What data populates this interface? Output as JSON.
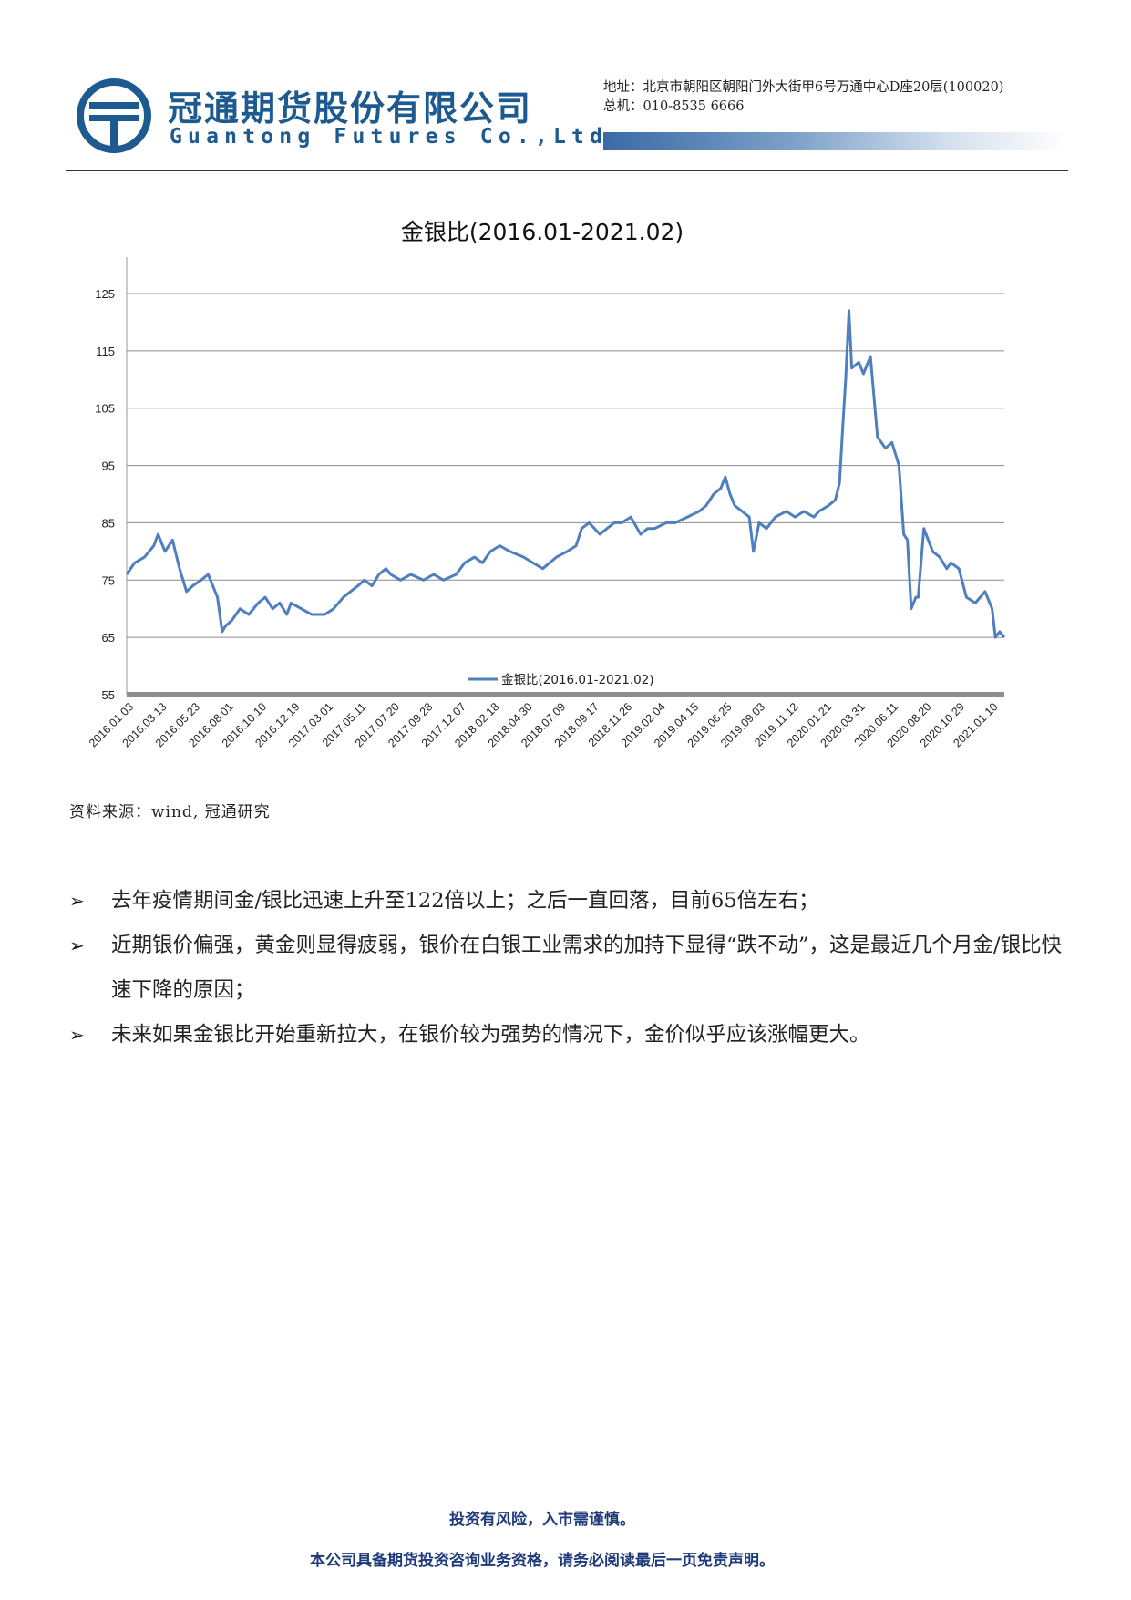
{
  "header": {
    "company_cn": "冠通期货股份有限公司",
    "company_en": "Guantong Futures Co.,Ltd",
    "address": "地址：北京市朝阳区朝阳门外大街甲6号万通中心D座20层(100020)",
    "phone": "总机：010-8535 6666",
    "brand_color": "#1c5a8f"
  },
  "chart_data": {
    "type": "line",
    "title": "金银比(2016.01-2021.02)",
    "ylim": [
      55,
      125
    ],
    "yticks": [
      125,
      115,
      105,
      95,
      85,
      75,
      65,
      55
    ],
    "grid": true,
    "legend_position": "bottom-center",
    "x_tick_labels": [
      "2016.01.03",
      "2016.03.13",
      "2016.05.23",
      "2016.08.01",
      "2016.10.10",
      "2016.12.19",
      "2017.03.01",
      "2017.05.11",
      "2017.07.20",
      "2017.09.28",
      "2017.12.07",
      "2018.02.18",
      "2018.04.30",
      "2018.07.09",
      "2018.09.17",
      "2018.11.26",
      "2019.02.04",
      "2019.04.15",
      "2019.06.25",
      "2019.09.03",
      "2019.11.12",
      "2020.01.21",
      "2020.03.31",
      "2020.06.11",
      "2020.08.20",
      "2020.10.29",
      "2021.01.10"
    ],
    "series": [
      {
        "name": "金银比(2016.01-2021.02)",
        "color": "#4f7fbf",
        "x": [
          "2016-01-03",
          "2016-01-20",
          "2016-02-10",
          "2016-03-01",
          "2016-03-10",
          "2016-03-25",
          "2016-04-10",
          "2016-04-25",
          "2016-05-10",
          "2016-05-23",
          "2016-06-10",
          "2016-06-25",
          "2016-07-05",
          "2016-07-15",
          "2016-07-25",
          "2016-08-01",
          "2016-08-15",
          "2016-09-01",
          "2016-09-20",
          "2016-10-10",
          "2016-10-25",
          "2016-11-10",
          "2016-11-25",
          "2016-12-10",
          "2016-12-19",
          "2017-01-10",
          "2017-02-01",
          "2017-03-01",
          "2017-03-20",
          "2017-04-10",
          "2017-04-25",
          "2017-05-11",
          "2017-05-25",
          "2017-06-10",
          "2017-06-25",
          "2017-07-10",
          "2017-07-20",
          "2017-08-10",
          "2017-09-01",
          "2017-09-28",
          "2017-10-20",
          "2017-11-10",
          "2017-12-07",
          "2017-12-25",
          "2018-01-15",
          "2018-02-01",
          "2018-02-18",
          "2018-03-10",
          "2018-04-01",
          "2018-04-30",
          "2018-05-20",
          "2018-06-10",
          "2018-07-09",
          "2018-08-01",
          "2018-08-20",
          "2018-09-01",
          "2018-09-17",
          "2018-10-10",
          "2018-10-25",
          "2018-11-10",
          "2018-11-26",
          "2018-12-15",
          "2019-01-05",
          "2019-01-20",
          "2019-02-04",
          "2019-03-01",
          "2019-03-20",
          "2019-04-15",
          "2019-05-10",
          "2019-05-25",
          "2019-06-10",
          "2019-06-25",
          "2019-07-05",
          "2019-07-15",
          "2019-07-25",
          "2019-08-10",
          "2019-08-25",
          "2019-09-03",
          "2019-09-15",
          "2019-10-01",
          "2019-10-20",
          "2019-11-12",
          "2019-12-01",
          "2019-12-20",
          "2020-01-10",
          "2020-01-21",
          "2020-02-10",
          "2020-02-25",
          "2020-03-05",
          "2020-03-12",
          "2020-03-18",
          "2020-03-25",
          "2020-03-31",
          "2020-04-15",
          "2020-04-25",
          "2020-05-10",
          "2020-05-25",
          "2020-06-11",
          "2020-06-25",
          "2020-07-10",
          "2020-07-20",
          "2020-07-28",
          "2020-08-05",
          "2020-08-15",
          "2020-08-20",
          "2020-09-01",
          "2020-09-20",
          "2020-10-05",
          "2020-10-20",
          "2020-10-29",
          "2020-11-15",
          "2020-12-01",
          "2020-12-20",
          "2021-01-10",
          "2021-01-25",
          "2021-02-01",
          "2021-02-10",
          "2021-02-20"
        ],
        "values": [
          76,
          78,
          79,
          81,
          83,
          80,
          82,
          77,
          73,
          74,
          75,
          76,
          74,
          72,
          66,
          67,
          68,
          70,
          69,
          71,
          72,
          70,
          71,
          69,
          71,
          70,
          69,
          69,
          70,
          72,
          73,
          74,
          75,
          74,
          76,
          77,
          76,
          75,
          76,
          75,
          76,
          75,
          76,
          78,
          79,
          78,
          80,
          81,
          80,
          79,
          78,
          77,
          79,
          80,
          81,
          84,
          85,
          83,
          84,
          85,
          85,
          86,
          83,
          84,
          84,
          85,
          85,
          86,
          87,
          88,
          90,
          91,
          93,
          90,
          88,
          87,
          86,
          80,
          85,
          84,
          86,
          87,
          86,
          87,
          86,
          87,
          88,
          89,
          92,
          102,
          110,
          122,
          112,
          113,
          111,
          114,
          100,
          98,
          99,
          95,
          83,
          82,
          70,
          72,
          72,
          84,
          80,
          79,
          77,
          78,
          77,
          72,
          71,
          73,
          70,
          65,
          66,
          65
        ],
        "peak": 122,
        "latest": 65
      }
    ]
  },
  "source": "资料来源：wind, 冠通研究",
  "bullets": [
    "去年疫情期间金/银比迅速上升至122倍以上；之后一直回落，目前65倍左右；",
    "近期银价偏强，黄金则显得疲弱，银价在白银工业需求的加持下显得“跌不动”，这是最近几个月金/银比快速下降的原因；",
    "未来如果金银比开始重新拉大，在银价较为强势的情况下，金价似乎应该涨幅更大。"
  ],
  "bullet_marker": "➢",
  "footer": {
    "line1": "投资有风险，入市需谨慎。",
    "line2": "本公司具备期货投资咨询业务资格，请务必阅读最后一页免责声明。"
  }
}
